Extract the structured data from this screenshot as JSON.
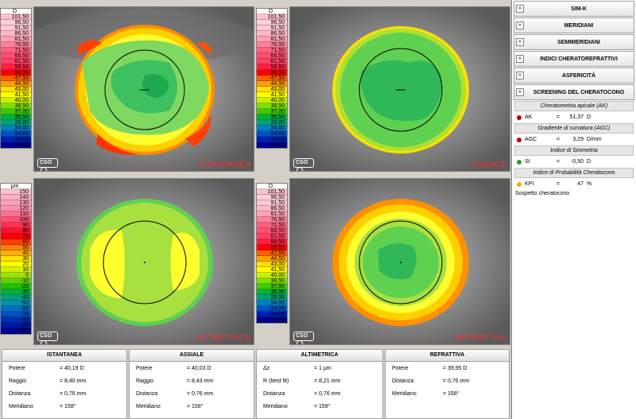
{
  "scales": {
    "curvature": {
      "unit": "D",
      "values": [
        "101,50",
        "96,50",
        "91,50",
        "86,50",
        "81,50",
        "76,50",
        "71,50",
        "66,50",
        "61,50",
        "56,50",
        "50,50",
        "47,50",
        "44,50",
        "43,00",
        "41,50",
        "40,00",
        "38,50",
        "37,00",
        "35,50",
        "29,00",
        "24,00",
        "19,00",
        "14,00",
        "9,00"
      ],
      "colors": [
        "#ffc0cb",
        "#ffd0d8",
        "#ffc8d4",
        "#ffb8c8",
        "#ffa0b4",
        "#ff8098",
        "#ff6080",
        "#ff5070",
        "#ff4060",
        "#ff2040",
        "#ff0000",
        "#ff6000",
        "#ffa000",
        "#ffe000",
        "#ffff00",
        "#c8f000",
        "#80e000",
        "#40c800",
        "#00b040",
        "#00a080",
        "#0080c0",
        "#0050c8",
        "#0020b0",
        "#000090"
      ]
    },
    "elevation": {
      "unit": "μm",
      "values": [
        "150",
        "140",
        "130",
        "120",
        "110",
        "100",
        "90",
        "80",
        "70",
        "60",
        "50",
        "40",
        "30",
        "20",
        "10",
        "0",
        "-10",
        "-20",
        "-30",
        "-40",
        "-50",
        "-60",
        "-70",
        "-80",
        "-90",
        "-100"
      ],
      "colors": [
        "#ffc0cb",
        "#ffb0c0",
        "#ffa0b4",
        "#ff90a8",
        "#ff7090",
        "#ff5070",
        "#ff3050",
        "#ff1030",
        "#ff0000",
        "#ff4000",
        "#ff8000",
        "#ffb000",
        "#ffe000",
        "#ffff00",
        "#d0f000",
        "#a0e000",
        "#60d000",
        "#20c000",
        "#00b040",
        "#00a080",
        "#0090b0",
        "#0070c8",
        "#0050c0",
        "#0030b0",
        "#0018a0",
        "#000090"
      ]
    }
  },
  "maps": [
    {
      "label": "ISTANTANEA"
    },
    {
      "label": "ASSIALE"
    },
    {
      "label": "ALTIMETRICA"
    },
    {
      "label": "REFRATTIVA"
    }
  ],
  "panel": {
    "sections": [
      {
        "label": "SIM-K"
      },
      {
        "label": "MERIDIANI"
      },
      {
        "label": "SEMIMERIDIANI"
      },
      {
        "label": "INDICI CHERATOREFRATTIVI"
      },
      {
        "label": "ASFERICITÀ"
      }
    ],
    "screening": {
      "title": "SCREENING DEL CHERATOCONO",
      "groups": [
        {
          "header": "Cheratometria apicale (AK)",
          "name": "AK",
          "value": "51,37",
          "unit": "D",
          "color": "#c00000"
        },
        {
          "header": "Gradiente di curvatura (AGC)",
          "name": "AGC",
          "value": "3,29",
          "unit": "D/mm",
          "color": "#c00000"
        },
        {
          "header": "Indice di Simmetria",
          "name": "SI",
          "value": "-0,50",
          "unit": "D",
          "color": "#20a020"
        },
        {
          "header": "Indice di Probabilità Cheratocono",
          "name": "KPI",
          "value": "47",
          "unit": "%",
          "color": "#f0b000"
        }
      ],
      "note": "Sospetto cheratocono"
    }
  },
  "tables": [
    {
      "title": "ISTANTANEA",
      "rows": [
        [
          "Potere",
          "= 40,19 D"
        ],
        [
          "Raggio",
          "= 8,40 mm"
        ],
        [
          "Distanza",
          "= 0,76 mm"
        ],
        [
          "Meridiano",
          "= 158°"
        ]
      ]
    },
    {
      "title": "ASSIALE",
      "rows": [
        [
          "Potere",
          "= 40,03 D"
        ],
        [
          "Raggio",
          "= 8,43 mm"
        ],
        [
          "Distanza",
          "= 0,76 mm"
        ],
        [
          "Meridiano",
          "= 158°"
        ]
      ]
    },
    {
      "title": "ALTIMETRICA",
      "rows": [
        [
          "Δz",
          "= 1 μm"
        ],
        [
          "R (best fit)",
          "= 8,21 mm"
        ],
        [
          "Distanza",
          "= 0,76 mm"
        ],
        [
          "Meridiano",
          "= 158°"
        ]
      ]
    },
    {
      "title": "REFRATTIVA",
      "rows": [
        [
          "Potere",
          "= 39,95 D"
        ],
        [
          "Distanza",
          "= 0,76 mm"
        ],
        [
          "Meridiano",
          "= 158°"
        ]
      ]
    }
  ],
  "logo": "CSO"
}
